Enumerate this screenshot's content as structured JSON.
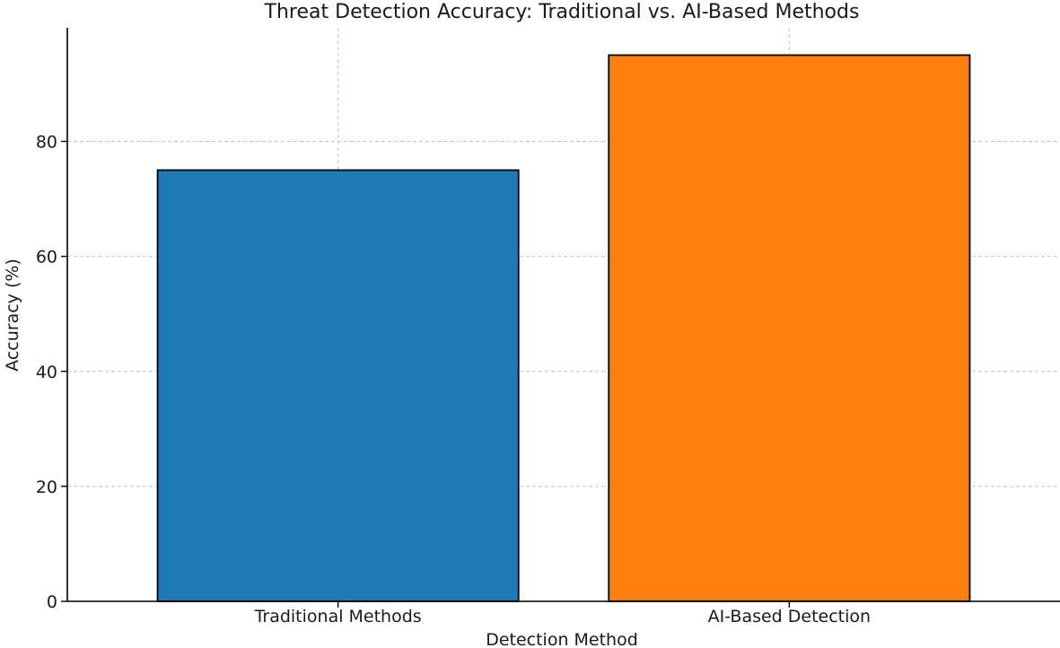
{
  "chart_data": {
    "type": "bar",
    "title": "Threat Detection Accuracy: Traditional vs. AI-Based Methods",
    "xlabel": "Detection Method",
    "ylabel": "Accuracy (%)",
    "categories": [
      "Traditional Methods",
      "AI-Based Detection"
    ],
    "values": [
      75,
      95
    ],
    "colors": [
      "#1f77b4",
      "#ff7f0e"
    ],
    "ylim": [
      0,
      99.75
    ],
    "yticks": [
      0,
      20,
      40,
      60,
      80
    ],
    "grid": true,
    "legend": "none"
  }
}
